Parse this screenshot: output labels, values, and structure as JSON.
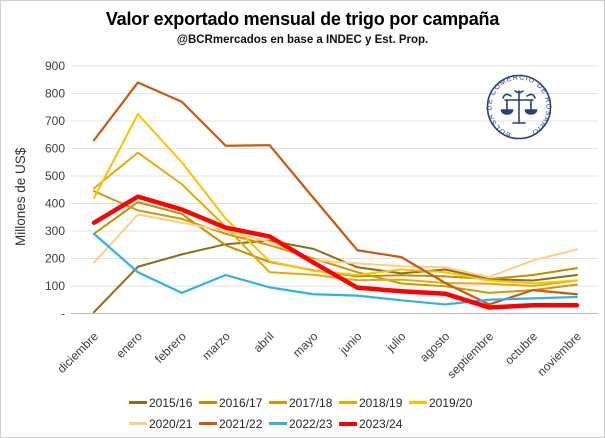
{
  "header": {
    "title": "Valor exportado mensual de trigo por campaña",
    "subtitle": "@BCRmercados en base a INDEC y Est. Prop."
  },
  "chart_data": {
    "type": "line",
    "title": "Valor exportado mensual de trigo por campaña",
    "subtitle": "@BCRmercados en base a INDEC y Est. Prop.",
    "ylabel": "Millones de US$",
    "xlabel": "",
    "ylim": [
      0,
      900
    ],
    "ytick_step": 100,
    "zero_tick_label": "-",
    "grid": "horizontal",
    "legend_position": "bottom",
    "categories": [
      "diciembre",
      "enero",
      "febrero",
      "marzo",
      "abril",
      "mayo",
      "junio",
      "julio",
      "agosto",
      "septiembre",
      "octubre",
      "noviembre"
    ],
    "series": [
      {
        "name": "2015/16",
        "color": "#8A6F16",
        "width": 2,
        "values": [
          5,
          170,
          215,
          252,
          265,
          235,
          168,
          146,
          160,
          125,
          120,
          140
        ]
      },
      {
        "name": "2016/17",
        "color": "#BF8F00",
        "width": 2,
        "values": [
          290,
          405,
          362,
          248,
          187,
          157,
          135,
          139,
          135,
          125,
          140,
          165
        ]
      },
      {
        "name": "2017/18",
        "color": "#CC9A05",
        "width": 2,
        "values": [
          445,
          375,
          344,
          290,
          248,
          200,
          150,
          109,
          99,
          75,
          85,
          105
        ]
      },
      {
        "name": "2018/19",
        "color": "#E2AC07",
        "width": 2,
        "values": [
          455,
          585,
          470,
          315,
          150,
          141,
          121,
          123,
          111,
          108,
          100,
          120
        ]
      },
      {
        "name": "2019/20",
        "color": "#FFC000",
        "width": 2,
        "values": [
          420,
          725,
          550,
          345,
          190,
          155,
          140,
          160,
          150,
          120,
          110,
          120
        ]
      },
      {
        "name": "2020/21",
        "color": "#FFCE85",
        "width": 2,
        "values": [
          185,
          360,
          330,
          300,
          260,
          195,
          182,
          172,
          168,
          133,
          193,
          233
        ]
      },
      {
        "name": "2021/22",
        "color": "#C55A11",
        "width": 2.2,
        "values": [
          630,
          840,
          770,
          610,
          612,
          420,
          230,
          205,
          111,
          33,
          85,
          70
        ]
      },
      {
        "name": "2022/23",
        "color": "#31B1E7",
        "width": 2.2,
        "values": [
          290,
          150,
          75,
          140,
          95,
          70,
          65,
          48,
          33,
          50,
          55,
          60
        ]
      },
      {
        "name": "2023/24",
        "color": "#FF0000",
        "width": 4.5,
        "values": [
          330,
          425,
          378,
          312,
          280,
          185,
          94,
          81,
          72,
          22,
          30,
          30
        ]
      }
    ]
  },
  "logo": {
    "name": "bolsa-de-comercio-de-rosario-seal",
    "text": "BOLSA DE COMERCIO DE ROSARIO",
    "color": "#2A3F7E"
  }
}
